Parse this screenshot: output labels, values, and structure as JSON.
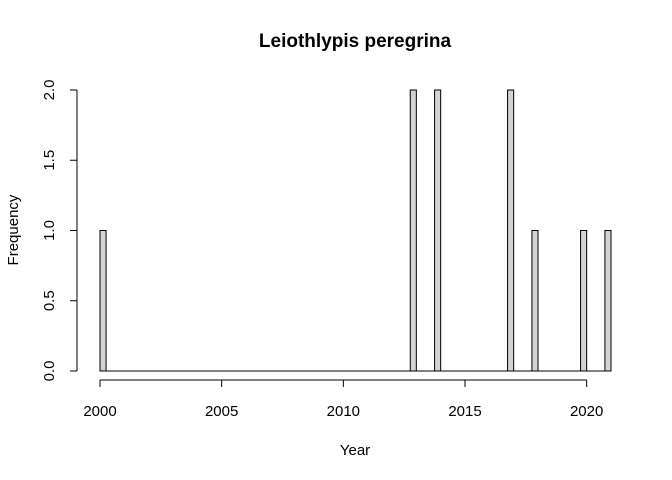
{
  "chart_data": {
    "type": "bar",
    "title": "Leiothlypis peregrina",
    "xlabel": "Year",
    "ylabel": "Frequency",
    "xlim": [
      2000,
      2021
    ],
    "ylim": [
      0,
      2
    ],
    "x_ticks": [
      2000,
      2005,
      2010,
      2015,
      2020
    ],
    "x_tick_labels": [
      "2000",
      "2005",
      "2010",
      "2015",
      "2020"
    ],
    "y_ticks": [
      0,
      0.5,
      1,
      1.5,
      2
    ],
    "y_tick_labels": [
      "0.0",
      "0.5",
      "1.0",
      "1.5",
      "2.0"
    ],
    "bin_width": 0.25,
    "bins": [
      {
        "start": 2000.0,
        "value": 1
      },
      {
        "start": 2012.75,
        "value": 2
      },
      {
        "start": 2013.75,
        "value": 2
      },
      {
        "start": 2016.75,
        "value": 2
      },
      {
        "start": 2017.75,
        "value": 1
      },
      {
        "start": 2019.75,
        "value": 1
      },
      {
        "start": 2020.75,
        "value": 1
      }
    ],
    "bar_color": "#d3d3d3",
    "grid": false,
    "legend": "none"
  }
}
